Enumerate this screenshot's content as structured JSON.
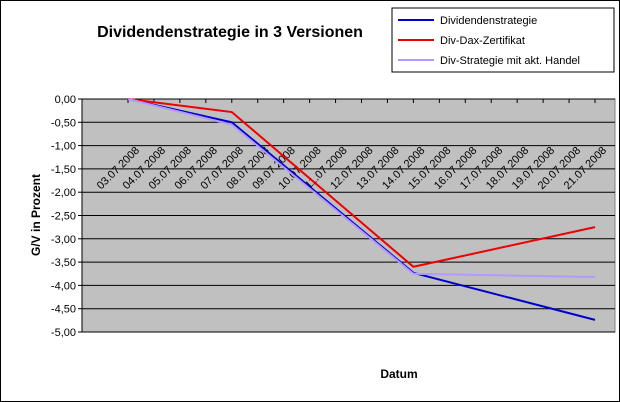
{
  "chart_data": {
    "type": "line",
    "title": "Dividendenstrategie in 3 Versionen",
    "x_label": "Datum",
    "y_label": "G/V in Prozent",
    "x": [
      "03.07.2008",
      "07.07.2008",
      "14.07.2008",
      "21.07.2008"
    ],
    "xlim": [
      "03.07.2008",
      "21.07.2008"
    ],
    "xticks": [
      "03.07.2008",
      "04.07.2008",
      "05.07.2008",
      "06.07.2008",
      "07.07.2008",
      "08.07.2008",
      "09.07.2008",
      "10.07.2008",
      "11.07.2008",
      "12.07.2008",
      "13.07.2008",
      "14.07.2008",
      "15.07.2008",
      "16.07.2008",
      "17.07.2008",
      "18.07.2008",
      "19.07.2008",
      "20.07.2008",
      "21.07.2008"
    ],
    "series": [
      {
        "name": "Dividendenstrategie",
        "color": "#0000cc",
        "values": [
          0,
          -0.5,
          -3.73,
          -4.74
        ]
      },
      {
        "name": "Div-Dax-Zertifikat",
        "color": "#ee0000",
        "values": [
          0,
          -0.28,
          -3.6,
          -2.75
        ]
      },
      {
        "name": "Div-Strategie mit akt. Handel",
        "color": "#b399ff",
        "values": [
          0,
          -0.55,
          -3.75,
          -3.82
        ]
      }
    ],
    "ylim": [
      -5,
      0
    ],
    "yticks": [
      {
        "value": 0,
        "label": "0,00"
      },
      {
        "value": -0.5,
        "label": "-0,50"
      },
      {
        "value": -1,
        "label": "-1,00"
      },
      {
        "value": -1.5,
        "label": "-1,50"
      },
      {
        "value": -2,
        "label": "-2,00"
      },
      {
        "value": -2.5,
        "label": "-2,50"
      },
      {
        "value": -3,
        "label": "-3,00"
      },
      {
        "value": -3.5,
        "label": "-3,50"
      },
      {
        "value": -4,
        "label": "-4,00"
      },
      {
        "value": -4.5,
        "label": "-4,50"
      },
      {
        "value": -5,
        "label": "-5,00"
      }
    ],
    "grid": true,
    "plot_background": "#c0c0c0",
    "legend_position": "top-right"
  }
}
